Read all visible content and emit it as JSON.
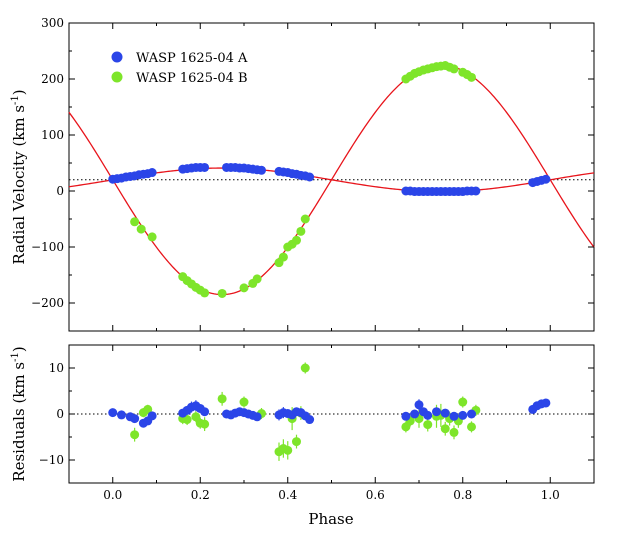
{
  "chart_data": [
    {
      "type": "scatter",
      "panel": "radial-velocity",
      "ylabel": "Radial Velocity (km s-1)",
      "ylabel_main": "Radial Velocity (km s",
      "ylabel_sup": "-1",
      "ylabel_close": ")",
      "xlim": [
        -0.1,
        1.1
      ],
      "ylim": [
        -250,
        300
      ],
      "yticks": [
        -200,
        -100,
        0,
        100,
        200,
        300
      ],
      "ytick_labels": [
        "−200",
        "−100",
        "0",
        "100",
        "200",
        "300"
      ],
      "systemic_velocity": 20,
      "legend_position": "top-left",
      "series": [
        {
          "name": "WASP 1625-04 A",
          "color": "#2b45e8",
          "model": {
            "gamma": 20,
            "K": 21,
            "color": "#e8141b"
          },
          "x": [
            0.0,
            0.01,
            0.02,
            0.03,
            0.04,
            0.05,
            0.06,
            0.07,
            0.08,
            0.09,
            0.16,
            0.17,
            0.18,
            0.19,
            0.2,
            0.21,
            0.26,
            0.27,
            0.28,
            0.29,
            0.3,
            0.31,
            0.32,
            0.33,
            0.34,
            0.38,
            0.39,
            0.4,
            0.41,
            0.42,
            0.43,
            0.44,
            0.45,
            0.67,
            0.68,
            0.69,
            0.7,
            0.71,
            0.72,
            0.73,
            0.74,
            0.75,
            0.76,
            0.77,
            0.78,
            0.79,
            0.8,
            0.81,
            0.82,
            0.83,
            0.96,
            0.97,
            0.98,
            0.99
          ],
          "y": [
            21,
            22,
            23,
            25,
            26,
            27,
            29,
            30,
            31,
            33,
            39,
            40,
            41,
            42,
            42,
            42,
            42,
            42,
            42,
            41,
            41,
            40,
            39,
            38,
            37,
            35,
            34,
            33,
            31,
            30,
            28,
            27,
            25,
            0,
            0,
            -1,
            -1,
            -1,
            -1,
            -1,
            -1,
            -1,
            -1,
            -1,
            -1,
            -1,
            -1,
            0,
            0,
            0,
            15,
            17,
            19,
            21
          ]
        },
        {
          "name": "WASP 1625-04 B",
          "color": "#7ee52a",
          "model": {
            "gamma": 20,
            "K": 205,
            "color": "#e8141b"
          },
          "x": [
            0.05,
            0.065,
            0.09,
            0.16,
            0.17,
            0.18,
            0.19,
            0.2,
            0.21,
            0.25,
            0.3,
            0.32,
            0.33,
            0.38,
            0.39,
            0.4,
            0.41,
            0.42,
            0.43,
            0.44,
            0.67,
            0.68,
            0.69,
            0.7,
            0.71,
            0.72,
            0.73,
            0.74,
            0.75,
            0.76,
            0.77,
            0.78,
            0.8,
            0.81,
            0.82
          ],
          "y": [
            -55,
            -68,
            -82,
            -153,
            -160,
            -166,
            -172,
            -177,
            -182,
            -183,
            -173,
            -165,
            -157,
            -128,
            -118,
            -100,
            -95,
            -88,
            -72,
            -50,
            200,
            205,
            210,
            213,
            216,
            218,
            220,
            222,
            223,
            224,
            221,
            218,
            212,
            208,
            203
          ]
        }
      ]
    },
    {
      "type": "scatter",
      "panel": "residuals",
      "xlabel": "Phase",
      "ylabel": "Residuals (km s-1)",
      "ylabel_main": "Residuals  (km s",
      "ylabel_sup": "-1",
      "ylabel_close": ")",
      "xlim": [
        -0.1,
        1.1
      ],
      "ylim": [
        -15,
        15
      ],
      "xticks": [
        0.0,
        0.2,
        0.4,
        0.6,
        0.8,
        1.0
      ],
      "xtick_labels": [
        "0.0",
        "0.2",
        "0.4",
        "0.6",
        "0.8",
        "1.0"
      ],
      "yticks": [
        -10,
        0,
        10
      ],
      "ytick_labels": [
        "−10",
        "0",
        "10"
      ],
      "series": [
        {
          "name": "WASP 1625-04 A",
          "color": "#2b45e8",
          "x": [
            0.0,
            0.02,
            0.04,
            0.05,
            0.07,
            0.08,
            0.09,
            0.16,
            0.17,
            0.18,
            0.19,
            0.2,
            0.21,
            0.26,
            0.27,
            0.28,
            0.29,
            0.3,
            0.31,
            0.32,
            0.33,
            0.38,
            0.39,
            0.4,
            0.41,
            0.42,
            0.43,
            0.44,
            0.45,
            0.67,
            0.69,
            0.7,
            0.71,
            0.72,
            0.74,
            0.76,
            0.78,
            0.8,
            0.82,
            0.96,
            0.97,
            0.98,
            0.99
          ],
          "y": [
            0.3,
            -0.2,
            -0.6,
            -1.0,
            -2.0,
            -1.5,
            -0.4,
            0.2,
            0.8,
            1.5,
            1.8,
            1.2,
            0.5,
            0.0,
            -0.2,
            0.2,
            0.5,
            0.3,
            0.0,
            -0.3,
            -0.6,
            -0.2,
            0.3,
            0.1,
            -0.2,
            0.5,
            0.3,
            -0.4,
            -1.2,
            -0.5,
            0.0,
            2.0,
            0.5,
            -0.3,
            0.5,
            0.2,
            -0.5,
            -0.3,
            0.0,
            1.0,
            1.8,
            2.2,
            2.4
          ],
          "err": [
            0.8,
            0.8,
            0.8,
            0.8,
            0.8,
            0.8,
            0.8,
            0.8,
            0.8,
            1.2,
            1.2,
            0.8,
            0.8,
            0.8,
            0.8,
            0.8,
            0.8,
            0.8,
            0.8,
            0.8,
            0.8,
            1.2,
            1.2,
            0.8,
            0.8,
            0.8,
            0.8,
            0.8,
            0.8,
            0.8,
            0.8,
            1.2,
            0.8,
            0.8,
            0.8,
            0.8,
            0.8,
            0.8,
            0.8,
            0.8,
            0.8,
            0.8,
            0.8
          ]
        },
        {
          "name": "WASP 1625-04 B",
          "color": "#7ee52a",
          "x": [
            0.05,
            0.07,
            0.08,
            0.16,
            0.17,
            0.19,
            0.2,
            0.21,
            0.25,
            0.3,
            0.34,
            0.38,
            0.39,
            0.4,
            0.41,
            0.42,
            0.43,
            0.44,
            0.67,
            0.68,
            0.7,
            0.72,
            0.74,
            0.75,
            0.76,
            0.77,
            0.78,
            0.79,
            0.8,
            0.82,
            0.83
          ],
          "y": [
            -4.5,
            0.3,
            1.0,
            -1.0,
            -1.2,
            -0.6,
            -2.0,
            -2.2,
            3.3,
            2.6,
            0.1,
            -8.2,
            -7.5,
            -7.9,
            -1.0,
            -6.0,
            0.2,
            10.0,
            -2.8,
            -1.5,
            -1.0,
            -2.3,
            -0.5,
            -0.3,
            -3.2,
            -1.0,
            -4.0,
            -1.5,
            2.6,
            -2.8,
            0.8
          ],
          "err": [
            1.5,
            1.0,
            1.0,
            1.2,
            1.2,
            1.2,
            1.2,
            1.5,
            1.5,
            1.2,
            1.2,
            2.0,
            2.0,
            2.0,
            2.5,
            1.5,
            1.5,
            1.2,
            1.2,
            1.2,
            2.0,
            1.5,
            2.5,
            2.5,
            1.5,
            1.5,
            1.5,
            1.5,
            1.2,
            1.2,
            1.2
          ]
        }
      ]
    }
  ]
}
